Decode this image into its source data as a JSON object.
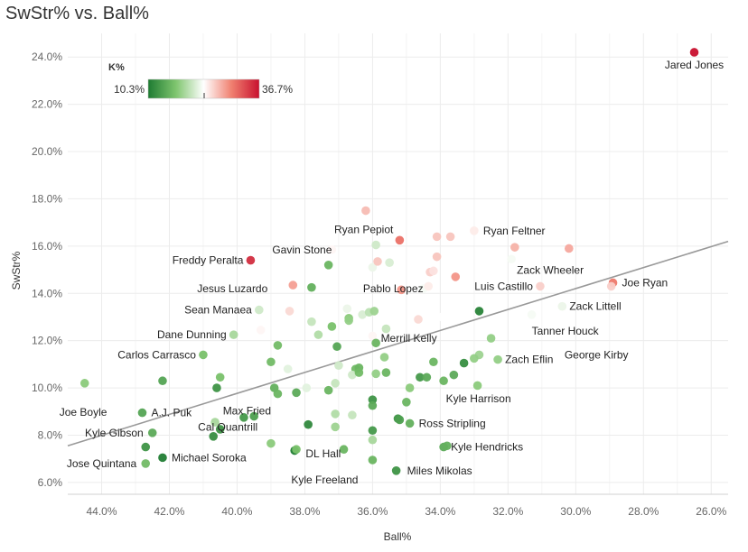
{
  "chart_data": {
    "type": "scatter",
    "title": "SwStr% vs. Ball%",
    "xlabel": "Ball%",
    "ylabel": "SwStr%",
    "xlim": [
      45.0,
      25.5
    ],
    "ylim": [
      5.5,
      25.0
    ],
    "x_reversed": true,
    "x_ticks": [
      44,
      42,
      40,
      38,
      36,
      34,
      32,
      30,
      28,
      26
    ],
    "x_tick_labels": [
      "44.0%",
      "42.0%",
      "40.0%",
      "38.0%",
      "36.0%",
      "34.0%",
      "32.0%",
      "30.0%",
      "28.0%",
      "26.0%"
    ],
    "y_ticks": [
      6,
      8,
      10,
      12,
      14,
      16,
      18,
      20,
      22,
      24
    ],
    "y_tick_labels": [
      "6.0%",
      "8.0%",
      "10.0%",
      "12.0%",
      "14.0%",
      "16.0%",
      "18.0%",
      "20.0%",
      "22.0%",
      "24.0%"
    ],
    "grid": true,
    "color_legend": {
      "title": "K%",
      "min_label": "10.3%",
      "max_label": "36.7%",
      "min": 10.3,
      "max": 36.7,
      "placement": "top-left",
      "colors": [
        "#1e7b32",
        "#7fc56e",
        "#ffffff",
        "#f08070",
        "#c8102e"
      ]
    },
    "trendline": {
      "x": [
        45.0,
        25.5
      ],
      "y": [
        7.55,
        16.2
      ]
    },
    "points": [
      {
        "x": 26.5,
        "y": 24.2,
        "k": 36.7,
        "label": "Jared Jones"
      },
      {
        "x": 36.2,
        "y": 17.5,
        "k": 27.0,
        "label": ""
      },
      {
        "x": 35.2,
        "y": 16.25,
        "k": 31.0,
        "label": "Ryan Pepiot"
      },
      {
        "x": 33.0,
        "y": 16.65,
        "k": 24.5,
        "label": "Ryan Feltner"
      },
      {
        "x": 34.1,
        "y": 16.4,
        "k": 26.5,
        "label": ""
      },
      {
        "x": 33.7,
        "y": 16.4,
        "k": 26.5,
        "label": ""
      },
      {
        "x": 31.8,
        "y": 15.95,
        "k": 27.5,
        "label": ""
      },
      {
        "x": 30.2,
        "y": 15.9,
        "k": 28.0,
        "label": ""
      },
      {
        "x": 35.9,
        "y": 16.05,
        "k": 21.0,
        "label": ""
      },
      {
        "x": 37.2,
        "y": 15.85,
        "k": 24.0,
        "label": "Gavin Stone"
      },
      {
        "x": 34.1,
        "y": 15.55,
        "k": 26.5,
        "label": ""
      },
      {
        "x": 35.5,
        "y": 15.3,
        "k": 21.5,
        "label": ""
      },
      {
        "x": 36.0,
        "y": 15.1,
        "k": 22.5,
        "label": ""
      },
      {
        "x": 35.85,
        "y": 15.35,
        "k": 26.5,
        "label": ""
      },
      {
        "x": 31.9,
        "y": 15.45,
        "k": 23.0,
        "label": "Zack Wheeler"
      },
      {
        "x": 39.6,
        "y": 15.4,
        "k": 35.0,
        "label": "Freddy Peralta"
      },
      {
        "x": 37.3,
        "y": 15.2,
        "k": 15.5,
        "label": ""
      },
      {
        "x": 34.3,
        "y": 14.9,
        "k": 26.0,
        "label": ""
      },
      {
        "x": 34.2,
        "y": 14.95,
        "k": 25.0,
        "label": ""
      },
      {
        "x": 33.55,
        "y": 14.7,
        "k": 29.0,
        "label": ""
      },
      {
        "x": 35.15,
        "y": 14.15,
        "k": 29.0,
        "label": ""
      },
      {
        "x": 34.5,
        "y": 14.2,
        "k": 23.0,
        "label": "Pablo Lopez"
      },
      {
        "x": 34.35,
        "y": 14.3,
        "k": 24.5,
        "label": ""
      },
      {
        "x": 38.35,
        "y": 14.35,
        "k": 28.5,
        "label": "Jesus Luzardo"
      },
      {
        "x": 37.8,
        "y": 14.25,
        "k": 15.0,
        "label": ""
      },
      {
        "x": 31.05,
        "y": 14.3,
        "k": 26.0,
        "label": "Luis Castillo"
      },
      {
        "x": 28.9,
        "y": 14.45,
        "k": 30.5,
        "label": "Joe Ryan"
      },
      {
        "x": 28.95,
        "y": 14.3,
        "k": 26.0,
        "label": ""
      },
      {
        "x": 30.4,
        "y": 13.45,
        "k": 22.5,
        "label": "Zack Littell"
      },
      {
        "x": 32.85,
        "y": 13.25,
        "k": 11.0,
        "label": ""
      },
      {
        "x": 38.45,
        "y": 13.25,
        "k": 25.5,
        "label": ""
      },
      {
        "x": 39.35,
        "y": 13.3,
        "k": 21.0,
        "label": "Sean Manaea"
      },
      {
        "x": 36.75,
        "y": 13.35,
        "k": 22.5,
        "label": ""
      },
      {
        "x": 36.3,
        "y": 13.1,
        "k": 21.5,
        "label": ""
      },
      {
        "x": 36.1,
        "y": 13.2,
        "k": 20.0,
        "label": ""
      },
      {
        "x": 35.95,
        "y": 13.25,
        "k": 18.5,
        "label": ""
      },
      {
        "x": 36.7,
        "y": 12.95,
        "k": 17.5,
        "label": ""
      },
      {
        "x": 36.7,
        "y": 12.85,
        "k": 18.0,
        "label": ""
      },
      {
        "x": 35.6,
        "y": 12.5,
        "k": 20.5,
        "label": ""
      },
      {
        "x": 34.65,
        "y": 12.9,
        "k": 25.5,
        "label": ""
      },
      {
        "x": 33.95,
        "y": 13.0,
        "k": 23.5,
        "label": ""
      },
      {
        "x": 31.3,
        "y": 13.1,
        "k": 23.0,
        "label": "Tanner Houck"
      },
      {
        "x": 37.2,
        "y": 12.6,
        "k": 16.5,
        "label": ""
      },
      {
        "x": 37.8,
        "y": 12.8,
        "k": 20.5,
        "label": ""
      },
      {
        "x": 39.3,
        "y": 12.45,
        "k": 24.0,
        "label": ""
      },
      {
        "x": 40.1,
        "y": 12.25,
        "k": 19.0,
        "label": "Dane Dunning"
      },
      {
        "x": 36.0,
        "y": 12.2,
        "k": 24.0,
        "label": ""
      },
      {
        "x": 35.9,
        "y": 11.9,
        "k": 15.5,
        "label": ""
      },
      {
        "x": 37.05,
        "y": 11.75,
        "k": 14.0,
        "label": ""
      },
      {
        "x": 38.8,
        "y": 11.8,
        "k": 16.0,
        "label": ""
      },
      {
        "x": 37.6,
        "y": 12.25,
        "k": 19.5,
        "label": ""
      },
      {
        "x": 32.5,
        "y": 12.1,
        "k": 18.0,
        "label": "Merrill Kelly"
      },
      {
        "x": 32.85,
        "y": 11.4,
        "k": 18.5,
        "label": ""
      },
      {
        "x": 32.3,
        "y": 11.2,
        "k": 18.0,
        "label": "Zach Eflin"
      },
      {
        "x": 41.0,
        "y": 11.4,
        "k": 16.5,
        "label": "Carlos Carrasco"
      },
      {
        "x": 39.0,
        "y": 11.1,
        "k": 16.0,
        "label": ""
      },
      {
        "x": 38.5,
        "y": 10.8,
        "k": 22.0,
        "label": ""
      },
      {
        "x": 37.0,
        "y": 10.95,
        "k": 21.0,
        "label": ""
      },
      {
        "x": 36.5,
        "y": 10.8,
        "k": 16.0,
        "label": ""
      },
      {
        "x": 36.4,
        "y": 10.85,
        "k": 15.5,
        "label": ""
      },
      {
        "x": 35.65,
        "y": 11.3,
        "k": 18.0,
        "label": ""
      },
      {
        "x": 35.6,
        "y": 10.65,
        "k": 15.5,
        "label": ""
      },
      {
        "x": 34.6,
        "y": 10.45,
        "k": 13.0,
        "label": ""
      },
      {
        "x": 34.2,
        "y": 11.1,
        "k": 15.5,
        "label": ""
      },
      {
        "x": 33.6,
        "y": 10.55,
        "k": 14.5,
        "label": ""
      },
      {
        "x": 33.3,
        "y": 11.05,
        "k": 12.0,
        "label": ""
      },
      {
        "x": 33.0,
        "y": 11.25,
        "k": 18.0,
        "label": "George Kirby"
      },
      {
        "x": 37.95,
        "y": 10.0,
        "k": 22.0,
        "label": ""
      },
      {
        "x": 37.1,
        "y": 10.2,
        "k": 20.5,
        "label": ""
      },
      {
        "x": 36.6,
        "y": 10.55,
        "k": 21.0,
        "label": ""
      },
      {
        "x": 36.4,
        "y": 10.65,
        "k": 16.0,
        "label": ""
      },
      {
        "x": 35.9,
        "y": 10.6,
        "k": 18.0,
        "label": ""
      },
      {
        "x": 34.4,
        "y": 10.45,
        "k": 14.5,
        "label": ""
      },
      {
        "x": 33.9,
        "y": 10.3,
        "k": 15.5,
        "label": ""
      },
      {
        "x": 32.9,
        "y": 10.1,
        "k": 17.5,
        "label": ""
      },
      {
        "x": 34.9,
        "y": 10.0,
        "k": 17.5,
        "label": "Kyle Harrison"
      },
      {
        "x": 44.5,
        "y": 10.2,
        "k": 17.5,
        "label": "Joe Boyle"
      },
      {
        "x": 42.2,
        "y": 10.3,
        "k": 14.0,
        "label": ""
      },
      {
        "x": 40.5,
        "y": 10.45,
        "k": 16.5,
        "label": ""
      },
      {
        "x": 40.6,
        "y": 10.0,
        "k": 12.5,
        "label": ""
      },
      {
        "x": 38.9,
        "y": 10.0,
        "k": 15.0,
        "label": ""
      },
      {
        "x": 38.8,
        "y": 9.75,
        "k": 15.5,
        "label": ""
      },
      {
        "x": 38.25,
        "y": 9.8,
        "k": 14.5,
        "label": "Max Fried"
      },
      {
        "x": 37.3,
        "y": 9.9,
        "k": 15.5,
        "label": ""
      },
      {
        "x": 36.0,
        "y": 9.5,
        "k": 12.5,
        "label": ""
      },
      {
        "x": 36.0,
        "y": 9.25,
        "k": 14.5,
        "label": ""
      },
      {
        "x": 35.0,
        "y": 9.4,
        "k": 15.5,
        "label": ""
      },
      {
        "x": 42.8,
        "y": 8.95,
        "k": 14.0,
        "label": "A.J. Puk"
      },
      {
        "x": 39.5,
        "y": 8.8,
        "k": 13.5,
        "label": "Cal Quantrill"
      },
      {
        "x": 39.8,
        "y": 8.75,
        "k": 13.0,
        "label": ""
      },
      {
        "x": 40.65,
        "y": 8.55,
        "k": 19.0,
        "label": ""
      },
      {
        "x": 40.5,
        "y": 8.25,
        "k": 12.5,
        "label": ""
      },
      {
        "x": 37.1,
        "y": 8.9,
        "k": 19.5,
        "label": ""
      },
      {
        "x": 36.6,
        "y": 8.85,
        "k": 20.5,
        "label": ""
      },
      {
        "x": 35.25,
        "y": 8.7,
        "k": 12.5,
        "label": ""
      },
      {
        "x": 35.2,
        "y": 8.65,
        "k": 13.5,
        "label": ""
      },
      {
        "x": 34.9,
        "y": 8.5,
        "k": 15.0,
        "label": "Ross Stripling"
      },
      {
        "x": 37.9,
        "y": 8.45,
        "k": 11.5,
        "label": ""
      },
      {
        "x": 37.1,
        "y": 8.35,
        "k": 18.5,
        "label": ""
      },
      {
        "x": 36.0,
        "y": 8.2,
        "k": 13.0,
        "label": "DL Hall"
      },
      {
        "x": 42.5,
        "y": 8.1,
        "k": 14.5,
        "label": "Kyle Gibson"
      },
      {
        "x": 40.7,
        "y": 7.95,
        "k": 12.0,
        "label": ""
      },
      {
        "x": 39.0,
        "y": 7.65,
        "k": 17.5,
        "label": ""
      },
      {
        "x": 38.3,
        "y": 7.35,
        "k": 10.3,
        "label": ""
      },
      {
        "x": 38.25,
        "y": 7.4,
        "k": 16.5,
        "label": ""
      },
      {
        "x": 36.85,
        "y": 7.4,
        "k": 15.5,
        "label": ""
      },
      {
        "x": 36.0,
        "y": 7.8,
        "k": 19.0,
        "label": ""
      },
      {
        "x": 33.9,
        "y": 7.5,
        "k": 14.5,
        "label": "Kyle Hendricks"
      },
      {
        "x": 33.8,
        "y": 7.55,
        "k": 15.0,
        "label": ""
      },
      {
        "x": 42.7,
        "y": 7.5,
        "k": 12.5,
        "label": ""
      },
      {
        "x": 42.2,
        "y": 7.05,
        "k": 10.5,
        "label": "Michael Soroka"
      },
      {
        "x": 42.7,
        "y": 6.8,
        "k": 16.0,
        "label": "Jose Quintana"
      },
      {
        "x": 36.0,
        "y": 6.95,
        "k": 15.5,
        "label": "Kyle Freeland"
      },
      {
        "x": 35.3,
        "y": 6.5,
        "k": 12.5,
        "label": "Miles Mikolas"
      }
    ]
  }
}
